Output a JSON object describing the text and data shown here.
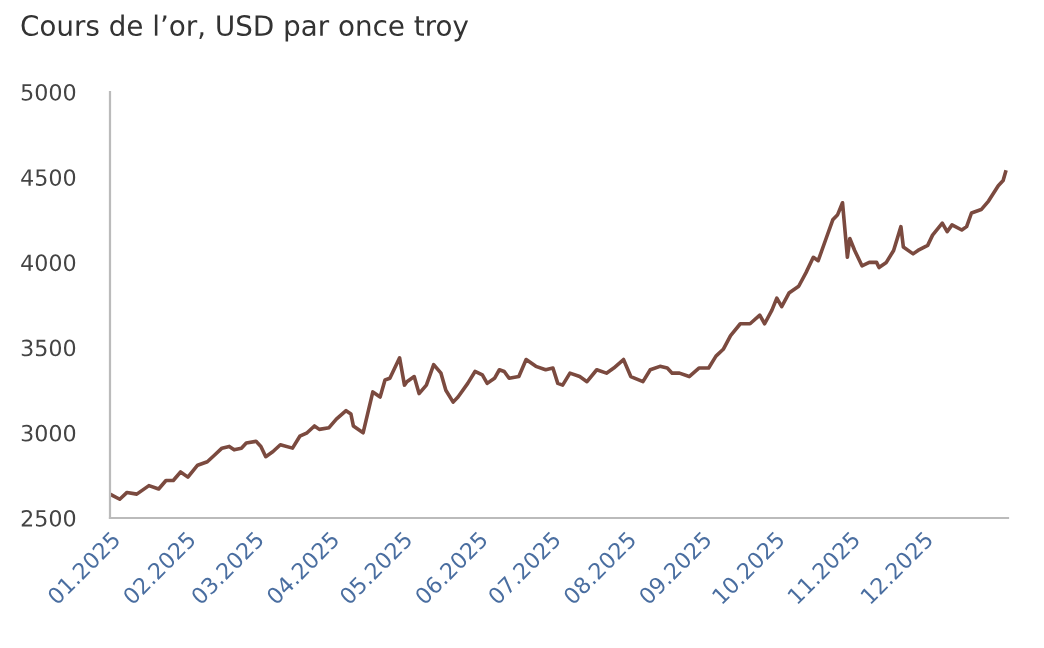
{
  "chart_data": {
    "type": "line",
    "title": "Cours de l’or, USD par once troy",
    "x": [
      "2025-01-01",
      "2025-01-05",
      "2025-01-08",
      "2025-01-12",
      "2025-01-17",
      "2025-01-21",
      "2025-01-24",
      "2025-01-27",
      "2025-01-30",
      "2025-02-02",
      "2025-02-06",
      "2025-02-10",
      "2025-02-13",
      "2025-02-16",
      "2025-02-19",
      "2025-02-21",
      "2025-02-24",
      "2025-02-26",
      "2025-03-02",
      "2025-03-04",
      "2025-03-06",
      "2025-03-09",
      "2025-03-12",
      "2025-03-17",
      "2025-03-20",
      "2025-03-23",
      "2025-03-26",
      "2025-03-28",
      "2025-04-01",
      "2025-04-04",
      "2025-04-08",
      "2025-04-10",
      "2025-04-11",
      "2025-04-15",
      "2025-04-19",
      "2025-04-22",
      "2025-04-24",
      "2025-04-26",
      "2025-04-30",
      "2025-05-02",
      "2025-05-03",
      "2025-05-06",
      "2025-05-08",
      "2025-05-11",
      "2025-05-12",
      "2025-05-14",
      "2025-05-17",
      "2025-05-19",
      "2025-05-22",
      "2025-05-24",
      "2025-05-28",
      "2025-05-31",
      "2025-06-03",
      "2025-06-05",
      "2025-06-08",
      "2025-06-10",
      "2025-06-12",
      "2025-06-14",
      "2025-06-18",
      "2025-06-21",
      "2025-06-25",
      "2025-06-29",
      "2025-07-02",
      "2025-07-04",
      "2025-07-06",
      "2025-07-09",
      "2025-07-13",
      "2025-07-16",
      "2025-07-20",
      "2025-07-24",
      "2025-07-27",
      "2025-07-31",
      "2025-08-03",
      "2025-08-08",
      "2025-08-11",
      "2025-08-15",
      "2025-08-18",
      "2025-08-20",
      "2025-08-23",
      "2025-08-27",
      "2025-08-31",
      "2025-09-04",
      "2025-09-07",
      "2025-09-10",
      "2025-09-13",
      "2025-09-17",
      "2025-09-21",
      "2025-09-25",
      "2025-09-27",
      "2025-09-30",
      "2025-10-02",
      "2025-10-04",
      "2025-10-07",
      "2025-10-11",
      "2025-10-14",
      "2025-10-17",
      "2025-10-19",
      "2025-10-22",
      "2025-10-25",
      "2025-10-27",
      "2025-10-29",
      "2025-10-31",
      "2025-11-01",
      "2025-11-03",
      "2025-11-06",
      "2025-11-09",
      "2025-11-12",
      "2025-11-13",
      "2025-11-16",
      "2025-11-19",
      "2025-11-22",
      "2025-11-23",
      "2025-11-27",
      "2025-11-29",
      "2025-12-03",
      "2025-12-05",
      "2025-12-09",
      "2025-12-11",
      "2025-12-13",
      "2025-12-17",
      "2025-12-19",
      "2025-12-21",
      "2025-12-25",
      "2025-12-28",
      "2026-01-01",
      "2026-01-03",
      "2026-01-04"
    ],
    "series": [
      {
        "color": "#7b4a3f",
        "values": [
          2640,
          2610,
          2650,
          2640,
          2690,
          2670,
          2720,
          2720,
          2770,
          2740,
          2810,
          2830,
          2870,
          2910,
          2920,
          2900,
          2910,
          2940,
          2950,
          2920,
          2860,
          2890,
          2930,
          2910,
          2980,
          3000,
          3040,
          3020,
          3030,
          3080,
          3130,
          3110,
          3040,
          3000,
          3240,
          3210,
          3310,
          3320,
          3440,
          3280,
          3300,
          3330,
          3230,
          3280,
          3320,
          3400,
          3350,
          3250,
          3180,
          3210,
          3290,
          3360,
          3340,
          3290,
          3320,
          3370,
          3360,
          3320,
          3330,
          3430,
          3390,
          3370,
          3380,
          3290,
          3280,
          3350,
          3330,
          3300,
          3370,
          3350,
          3380,
          3430,
          3330,
          3300,
          3370,
          3390,
          3380,
          3350,
          3350,
          3330,
          3380,
          3380,
          3450,
          3490,
          3570,
          3640,
          3640,
          3690,
          3640,
          3720,
          3790,
          3740,
          3820,
          3860,
          3940,
          4030,
          4010,
          4130,
          4250,
          4280,
          4350,
          4030,
          4140,
          4070,
          3980,
          4000,
          4000,
          3970,
          4000,
          4070,
          4210,
          4090,
          4050,
          4070,
          4100,
          4160,
          4230,
          4180,
          4220,
          4190,
          4210,
          4290,
          4310,
          4360,
          4450,
          4480,
          4530
        ]
      }
    ],
    "xlim": [
      "2025-01-01",
      "2026-01-05"
    ],
    "xticks": [
      {
        "value": "2025-01-01",
        "label": "01.2025"
      },
      {
        "value": "2025-02-01",
        "label": "02.2025"
      },
      {
        "value": "2025-03-01",
        "label": "03.2025"
      },
      {
        "value": "2025-04-01",
        "label": "04.2025"
      },
      {
        "value": "2025-05-01",
        "label": "05.2025"
      },
      {
        "value": "2025-06-01",
        "label": "06.2025"
      },
      {
        "value": "2025-07-01",
        "label": "07.2025"
      },
      {
        "value": "2025-08-01",
        "label": "08.2025"
      },
      {
        "value": "2025-09-01",
        "label": "09.2025"
      },
      {
        "value": "2025-10-01",
        "label": "10.2025"
      },
      {
        "value": "2025-11-01",
        "label": "11.2025"
      },
      {
        "value": "2025-12-01",
        "label": "12.2025"
      }
    ],
    "ylim": [
      2500,
      5000
    ],
    "yticks": [
      2500,
      3000,
      3500,
      4000,
      4500,
      5000
    ],
    "grid": false,
    "legend": false,
    "marker": "none",
    "line_style": "solid"
  }
}
